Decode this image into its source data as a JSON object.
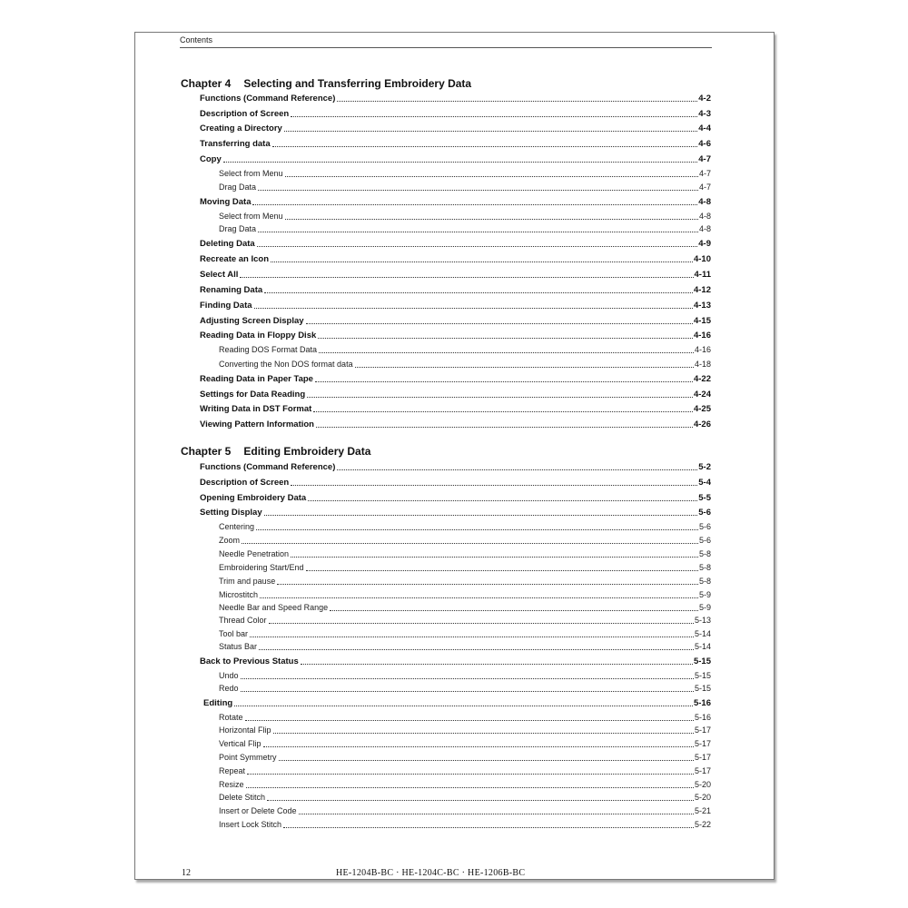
{
  "header": {
    "title": "Contents"
  },
  "chapters": [
    {
      "number": "Chapter 4",
      "title": "Selecting and Transferring Embroidery Data",
      "entries": [
        {
          "label": "Functions (Command Reference)",
          "page": "4-2",
          "level": 1
        },
        {
          "label": "Description of Screen",
          "page": "4-3",
          "level": 1
        },
        {
          "label": "Creating a Directory",
          "page": "4-4",
          "level": 1
        },
        {
          "label": "Transferring data",
          "page": "4-6",
          "level": 1
        },
        {
          "label": "Copy",
          "page": "4-7",
          "level": 1
        },
        {
          "label": "Select from Menu",
          "page": "4-7",
          "level": 2
        },
        {
          "label": "Drag Data",
          "page": "4-7",
          "level": 2
        },
        {
          "label": "Moving Data",
          "page": "4-8",
          "level": 1
        },
        {
          "label": "Select from Menu",
          "page": "4-8",
          "level": 2
        },
        {
          "label": "Drag Data",
          "page": "4-8",
          "level": 2
        },
        {
          "label": "Deleting Data",
          "page": "4-9",
          "level": 1
        },
        {
          "label": "Recreate an Icon",
          "page": "4-10",
          "level": 1
        },
        {
          "label": "Select All",
          "page": "4-11",
          "level": 1
        },
        {
          "label": "Renaming Data",
          "page": "4-12",
          "level": 1
        },
        {
          "label": "Finding Data",
          "page": "4-13",
          "level": 1
        },
        {
          "label": "Adjusting Screen Display",
          "page": "4-15",
          "level": 1
        },
        {
          "label": "Reading Data in Floppy Disk",
          "page": "4-16",
          "level": 1
        },
        {
          "label": "Reading DOS Format Data",
          "page": "4-16",
          "level": 2
        },
        {
          "label": "Converting the Non DOS format data",
          "page": "4-18",
          "level": 2
        },
        {
          "label": "Reading Data in Paper Tape",
          "page": "4-22",
          "level": 1
        },
        {
          "label": "Settings for Data Reading",
          "page": "4-24",
          "level": 1
        },
        {
          "label": "Writing Data in DST Format",
          "page": "4-25",
          "level": 1
        },
        {
          "label": "Viewing Pattern Information",
          "page": "4-26",
          "level": 1
        }
      ]
    },
    {
      "number": "Chapter 5",
      "title": "Editing Embroidery Data",
      "entries": [
        {
          "label": "Functions (Command Reference)",
          "page": "5-2",
          "level": 1
        },
        {
          "label": "Description of Screen",
          "page": "5-4",
          "level": 1
        },
        {
          "label": "Opening Embroidery Data",
          "page": "5-5",
          "level": 1
        },
        {
          "label": "Setting Display",
          "page": "5-6",
          "level": 1
        },
        {
          "label": "Centering",
          "page": "5-6",
          "level": 2
        },
        {
          "label": "Zoom",
          "page": "5-6",
          "level": 2
        },
        {
          "label": "Needle Penetration",
          "page": "5-8",
          "level": 2
        },
        {
          "label": "Embroidering Start/End",
          "page": "5-8",
          "level": 2
        },
        {
          "label": "Trim and pause",
          "page": "5-8",
          "level": 2
        },
        {
          "label": "Microstitch",
          "page": "5-9",
          "level": 2
        },
        {
          "label": "Needle Bar and Speed Range",
          "page": "5-9",
          "level": 2
        },
        {
          "label": "Thread Color",
          "page": "5-13",
          "level": 2
        },
        {
          "label": "Tool bar",
          "page": "5-14",
          "level": 2
        },
        {
          "label": "Status Bar",
          "page": "5-14",
          "level": 2
        },
        {
          "label": "Back to Previous Status",
          "page": "5-15",
          "level": 1
        },
        {
          "label": "Undo",
          "page": "5-15",
          "level": 2
        },
        {
          "label": "Redo",
          "page": "5-15",
          "level": 2
        },
        {
          "label": "Editing",
          "page": "5-16",
          "level": 1
        },
        {
          "label": "Rotate",
          "page": "5-16",
          "level": 2
        },
        {
          "label": "Horizontal Flip",
          "page": "5-17",
          "level": 2
        },
        {
          "label": "Vertical Flip",
          "page": "5-17",
          "level": 2
        },
        {
          "label": "Point Symmetry",
          "page": "5-17",
          "level": 2
        },
        {
          "label": "Repeat",
          "page": "5-17",
          "level": 2
        },
        {
          "label": "Resize",
          "page": "5-20",
          "level": 2
        },
        {
          "label": "Delete Stitch",
          "page": "5-20",
          "level": 2
        },
        {
          "label": "Insert or Delete Code",
          "page": "5-21",
          "level": 2
        },
        {
          "label": "Insert Lock Stitch",
          "page": "5-22",
          "level": 2
        }
      ]
    }
  ],
  "footer": {
    "page_number": "12",
    "models": "HE-1204B-BC · HE-1204C-BC · HE-1206B-BC"
  }
}
